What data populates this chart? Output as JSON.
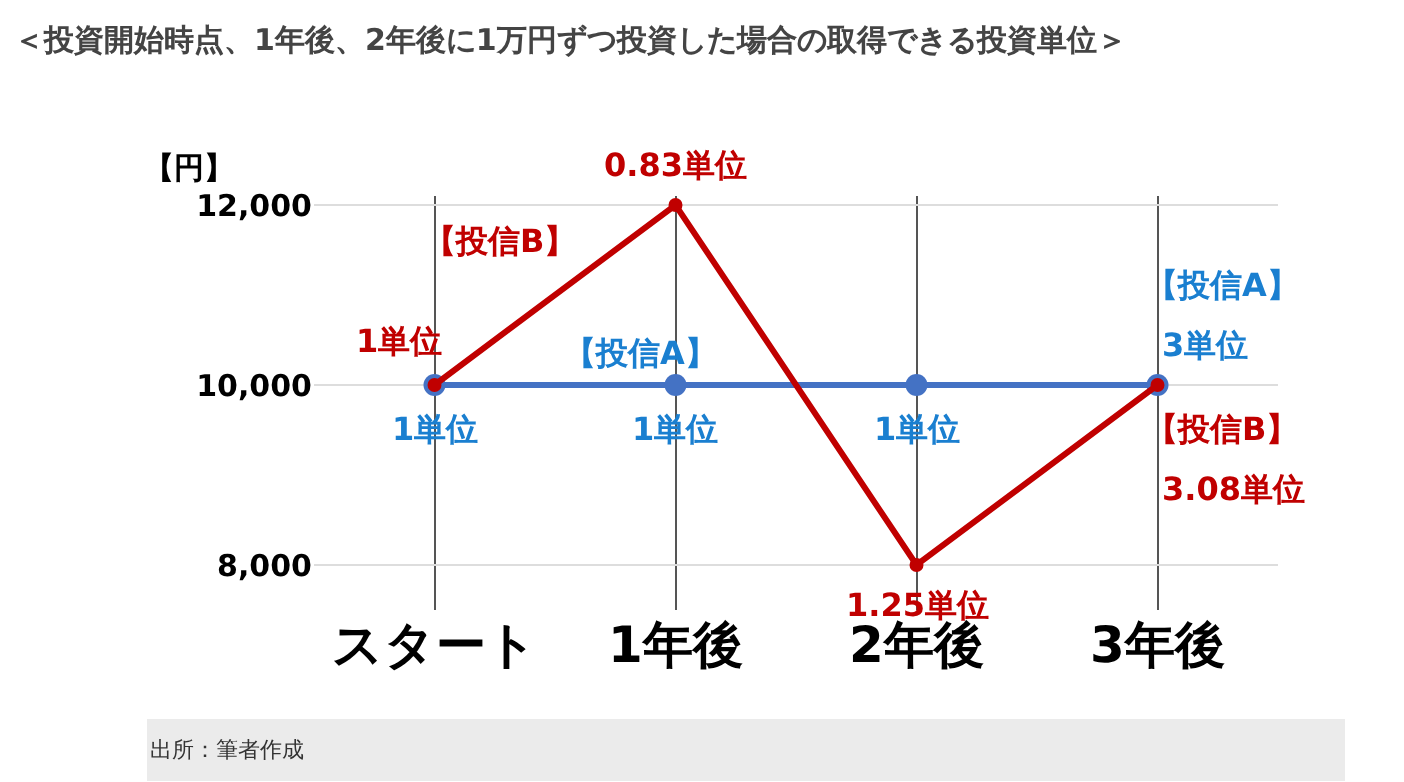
{
  "chart_data": {
    "type": "line",
    "title": "＜投資開始時点、1年後、2年後に1万円ずつ投資した場合の取得できる投資単位＞",
    "ylabel": "【円】",
    "categories": [
      "スタート",
      "1年後",
      "2年後",
      "3年後"
    ],
    "series": [
      {
        "name": "【投信A】",
        "color": "#4472c4",
        "values": [
          10000,
          10000,
          10000,
          10000
        ]
      },
      {
        "name": "【投信B】",
        "color": "#c00000",
        "values": [
          10000,
          12000,
          8000,
          10000
        ]
      }
    ],
    "annotations": [
      {
        "text": "1単位",
        "x": "スタート",
        "y": 10000
      },
      {
        "text": "1単位",
        "x": "スタート",
        "y": 10000
      },
      {
        "text": "0.83単位",
        "x": "1年後",
        "y": 12000
      },
      {
        "text": "1単位",
        "x": "1年後",
        "y": 10000
      },
      {
        "text": "1単位",
        "x": "2年後",
        "y": 10000
      },
      {
        "text": "1.25単位",
        "x": "2年後",
        "y": 8000
      },
      {
        "text": "【投信A】",
        "x": "3年後",
        "y": 10000
      },
      {
        "text": "3単位",
        "x": "3年後",
        "y": 10000
      },
      {
        "text": "【投信B】",
        "x": "3年後",
        "y": 10000
      },
      {
        "text": "3.08単位",
        "x": "3年後",
        "y": 10000
      },
      "出所：筆者作成"
    ],
    "ylim": [
      7500,
      12100
    ],
    "yticks": [
      {
        "value": 8000,
        "label": "8,000"
      },
      {
        "value": 10000,
        "label": "10,000"
      },
      {
        "value": 12000,
        "label": "12,000"
      }
    ],
    "grid": true,
    "marker": "circle",
    "line_style": "solid",
    "legend": false
  }
}
